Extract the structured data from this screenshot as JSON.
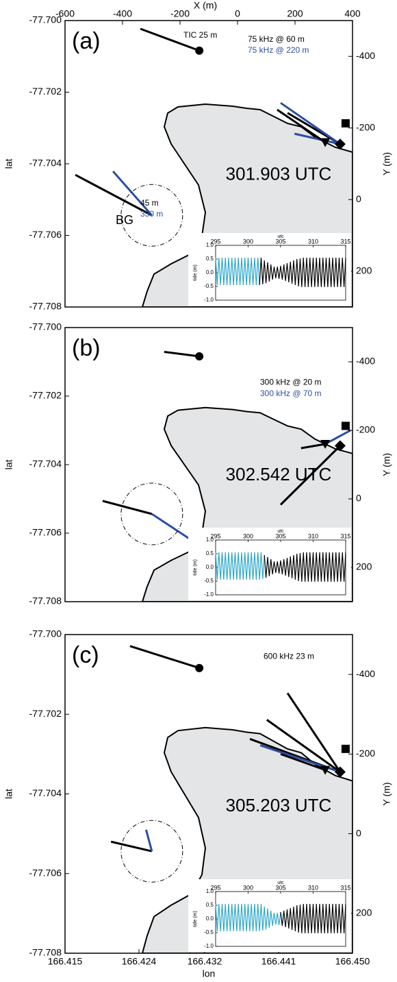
{
  "x2_label": "X (m)",
  "lat_label": "lat",
  "y2_label": "Y (m)",
  "lon_label": "lon",
  "xlim": [
    166.415,
    166.45
  ],
  "xticks": [
    166.415,
    166.424,
    166.432,
    166.441,
    {
      "value": 166.45,
      "label": "166.450"
    }
  ],
  "x2lim": [
    -600,
    400
  ],
  "x2ticks": [
    -600,
    -400,
    -200,
    0,
    200,
    400
  ],
  "ylim": [
    -77.708,
    -77.7
  ],
  "yticks": [
    {
      "value": -77.7,
      "label": "-77.700"
    },
    -77.702,
    -77.704,
    -77.706,
    -77.708
  ],
  "y2lim": [
    -500,
    300
  ],
  "y2ticks": [
    -400,
    -200,
    0,
    200
  ],
  "colors": {
    "black": "#000000",
    "blue": "#2b4ea2",
    "land": "#e4e5e6"
  },
  "instruments": [
    {
      "marker": "circle",
      "x": -133,
      "y": -416
    },
    {
      "marker": "square",
      "x": 376,
      "y": -213
    },
    {
      "marker": "triangle",
      "x": 305,
      "y": -160
    },
    {
      "marker": "diamond",
      "x": 357,
      "y": -155
    },
    {
      "marker": "ring",
      "x": -298,
      "y": 44
    }
  ],
  "tide": {
    "x_label": "utc",
    "y_label": "tide (m)",
    "xlim": [
      295,
      315
    ],
    "xticks": [
      295,
      300,
      305,
      310,
      315
    ],
    "ylim": [
      -1,
      1
    ],
    "yticks": [
      {
        "value": -1,
        "label": "-1.0"
      },
      -0.5,
      {
        "value": 0,
        "label": "0.0"
      },
      0.5,
      {
        "value": 1,
        "label": "1.0"
      }
    ],
    "past_color": "#2aa7c9",
    "future_color": "#000000",
    "x": [
      295,
      295.25,
      295.5,
      295.75,
      296,
      296.25,
      296.5,
      296.75,
      297,
      297.25,
      297.5,
      297.75,
      298,
      298.25,
      298.5,
      298.75,
      299,
      299.25,
      299.5,
      299.75,
      300,
      300.25,
      300.5,
      300.75,
      301,
      301.25,
      301.5,
      301.75,
      302,
      302.25,
      302.5,
      302.75,
      303,
      303.25,
      303.5,
      303.75,
      304,
      304.25,
      304.5,
      304.75,
      305,
      305.25,
      305.5,
      305.75,
      306,
      306.25,
      306.5,
      306.75,
      307,
      307.25,
      307.5,
      307.75,
      308,
      308.25,
      308.5,
      308.75,
      309,
      309.25,
      309.5,
      309.75,
      310,
      310.25,
      310.5,
      310.75,
      311,
      311.25,
      311.5,
      311.75,
      312,
      312.25,
      312.5,
      312.75,
      313,
      313.25,
      313.5,
      313.75,
      314,
      314.25,
      314.5,
      314.75,
      315
    ],
    "values": [
      0.55,
      -0.45,
      0.55,
      -0.45,
      0.55,
      -0.45,
      0.55,
      -0.45,
      0.55,
      -0.45,
      0.55,
      -0.45,
      0.55,
      -0.45,
      0.55,
      -0.45,
      0.55,
      -0.45,
      0.55,
      -0.45,
      0.55,
      -0.45,
      0.55,
      -0.45,
      0.55,
      -0.45,
      0.55,
      -0.45,
      0.55,
      -0.42,
      0.45,
      -0.38,
      0.38,
      -0.32,
      0.3,
      -0.25,
      0.22,
      -0.2,
      0.22,
      -0.22,
      0.25,
      -0.25,
      0.3,
      -0.3,
      0.35,
      -0.35,
      0.4,
      -0.4,
      0.45,
      -0.45,
      0.5,
      -0.5,
      0.52,
      -0.52,
      0.55,
      -0.52,
      0.55,
      -0.52,
      0.55,
      -0.52,
      0.55,
      -0.52,
      0.55,
      -0.52,
      0.55,
      -0.52,
      0.55,
      -0.52,
      0.55,
      -0.52,
      0.55,
      -0.52,
      0.55,
      -0.52,
      0.55,
      -0.52,
      0.55,
      -0.52,
      0.55,
      -0.52,
      0.55
    ]
  },
  "chart_data": [
    {
      "type": "map",
      "panel": "(a)",
      "time": {
        "value": 301.903,
        "label": "301.903 UTC"
      },
      "annotations": [
        {
          "text": "TIC 25 m",
          "color": "#000000"
        },
        {
          "text": "75 kHz @ 60 m",
          "color": "#000000"
        },
        {
          "text": "75 kHz @ 220 m",
          "color": "#2b4ea2"
        },
        {
          "text": "BG",
          "color": "#000000"
        },
        {
          "text": "45 m",
          "color": "#000000"
        },
        {
          "text": "350 m",
          "color": "#2b4ea2"
        }
      ],
      "vectors": [
        {
          "color": "#000000",
          "x": [
            -133,
            -338
          ],
          "y": [
            -416,
            -477
          ]
        },
        {
          "color": "#000000",
          "x": [
            357,
            174
          ],
          "y": [
            -155,
            -242
          ]
        },
        {
          "color": "#2b4ea2",
          "x": [
            357,
            150
          ],
          "y": [
            -155,
            -270
          ]
        },
        {
          "color": "#2b4ea2",
          "x": [
            357,
            198
          ],
          "y": [
            -155,
            -184
          ]
        },
        {
          "color": "#000000",
          "x": [
            305,
            138
          ],
          "y": [
            -160,
            -251
          ]
        },
        {
          "color": "#000000",
          "x": [
            -298,
            -564
          ],
          "y": [
            44,
            -69
          ]
        },
        {
          "color": "#2b4ea2",
          "x": [
            -298,
            -433
          ],
          "y": [
            44,
            -79
          ]
        }
      ]
    },
    {
      "type": "map",
      "panel": "(b)",
      "time": {
        "value": 302.542,
        "label": "302.542 UTC"
      },
      "annotations": [
        {
          "text": "300 kHz @ 20 m",
          "color": "#000000"
        },
        {
          "text": "300 kHz @ 70 m",
          "color": "#2b4ea2"
        }
      ],
      "vectors": [
        {
          "color": "#000000",
          "x": [
            -133,
            -255
          ],
          "y": [
            -416,
            -429
          ]
        },
        {
          "color": "#000000",
          "x": [
            357,
            150
          ],
          "y": [
            -155,
            17
          ]
        },
        {
          "color": "#2b4ea2",
          "x": [
            305,
            393
          ],
          "y": [
            -160,
            -200
          ]
        },
        {
          "color": "#000000",
          "x": [
            305,
            221
          ],
          "y": [
            -160,
            -148
          ]
        },
        {
          "color": "#000000",
          "x": [
            -298,
            -469
          ],
          "y": [
            44,
            6
          ]
        },
        {
          "color": "#2b4ea2",
          "x": [
            -298,
            -148
          ],
          "y": [
            44,
            127
          ]
        }
      ]
    },
    {
      "type": "map",
      "panel": "(c)",
      "time": {
        "value": 305.203,
        "label": "305.203 UTC"
      },
      "annotations": [
        {
          "text": "600 kHz 23 m",
          "color": "#000000"
        }
      ],
      "vectors": [
        {
          "color": "#000000",
          "x": [
            -133,
            -374
          ],
          "y": [
            -416,
            -471
          ]
        },
        {
          "color": "#000000",
          "x": [
            357,
            102
          ],
          "y": [
            -155,
            -286
          ]
        },
        {
          "color": "#000000",
          "x": [
            357,
            43
          ],
          "y": [
            -155,
            -238
          ]
        },
        {
          "color": "#000000",
          "x": [
            357,
            174
          ],
          "y": [
            -155,
            -353
          ]
        },
        {
          "color": "#2b4ea2",
          "x": [
            357,
            79
          ],
          "y": [
            -155,
            -222
          ]
        },
        {
          "color": "#000000",
          "x": [
            305,
            150
          ],
          "y": [
            -160,
            -200
          ]
        },
        {
          "color": "#000000",
          "x": [
            -298,
            -440
          ],
          "y": [
            44,
            20
          ]
        },
        {
          "color": "#2b4ea2",
          "x": [
            -298,
            -318
          ],
          "y": [
            44,
            -10
          ]
        }
      ]
    }
  ]
}
